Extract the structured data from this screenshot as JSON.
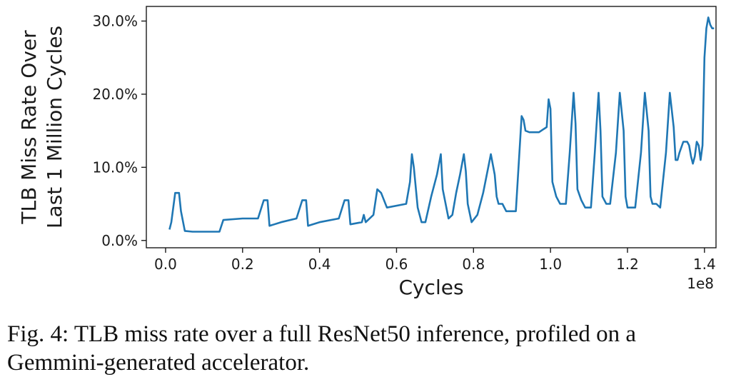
{
  "chart_data": {
    "type": "line",
    "xlabel": "Cycles",
    "x_offset_label": "1e8",
    "ylabel_lines": [
      "TLB Miss Rate Over",
      "Last 1 Million Cycles"
    ],
    "xlim": [
      -0.05,
      1.43
    ],
    "ylim": [
      -1.0,
      32.0
    ],
    "x_ticks": [
      0.0,
      0.2,
      0.4,
      0.6,
      0.8,
      1.0,
      1.2,
      1.4
    ],
    "x_tick_labels": [
      "0.0",
      "0.2",
      "0.4",
      "0.6",
      "0.8",
      "1.0",
      "1.2",
      "1.4"
    ],
    "y_ticks": [
      0,
      10,
      20,
      30
    ],
    "y_tick_labels": [
      "0.0%",
      "10.0%",
      "20.0%",
      "30.0%"
    ],
    "color": "#1f77b4",
    "series": [
      {
        "x": [
          0.01,
          0.015,
          0.025,
          0.035,
          0.04,
          0.05,
          0.07,
          0.1,
          0.14,
          0.15,
          0.2,
          0.24,
          0.255,
          0.265,
          0.27,
          0.3,
          0.34,
          0.355,
          0.365,
          0.37,
          0.4,
          0.45,
          0.465,
          0.475,
          0.48,
          0.51,
          0.515,
          0.52,
          0.54,
          0.55,
          0.56,
          0.575,
          0.625,
          0.635,
          0.64,
          0.645,
          0.655,
          0.665,
          0.675,
          0.69,
          0.705,
          0.715,
          0.72,
          0.735,
          0.745,
          0.755,
          0.765,
          0.775,
          0.78,
          0.785,
          0.795,
          0.81,
          0.825,
          0.845,
          0.855,
          0.86,
          0.865,
          0.875,
          0.885,
          0.91,
          0.925,
          0.93,
          0.935,
          0.945,
          0.955,
          0.97,
          0.99,
          0.995,
          1.0,
          1.005,
          1.015,
          1.025,
          1.04,
          1.05,
          1.06,
          1.065,
          1.07,
          1.08,
          1.09,
          1.105,
          1.115,
          1.125,
          1.13,
          1.135,
          1.145,
          1.155,
          1.17,
          1.18,
          1.19,
          1.195,
          1.2,
          1.21,
          1.22,
          1.235,
          1.245,
          1.255,
          1.26,
          1.265,
          1.275,
          1.285,
          1.3,
          1.31,
          1.32,
          1.325,
          1.33,
          1.335,
          1.345,
          1.355,
          1.36,
          1.365,
          1.37,
          1.375,
          1.38,
          1.385,
          1.39,
          1.395,
          1.4,
          1.405,
          1.41,
          1.415,
          1.42,
          1.425
        ],
        "y": [
          1.5,
          2.5,
          6.5,
          6.5,
          4.0,
          1.3,
          1.2,
          1.2,
          1.2,
          2.8,
          3.0,
          3.0,
          5.5,
          5.5,
          2.0,
          2.5,
          3.0,
          5.5,
          5.5,
          2.0,
          2.5,
          3.0,
          5.5,
          5.5,
          2.2,
          2.5,
          3.5,
          2.5,
          3.5,
          7.0,
          6.5,
          4.5,
          5.0,
          8.0,
          11.8,
          10.0,
          4.5,
          2.5,
          2.5,
          6.0,
          9.0,
          11.8,
          7.0,
          3.0,
          3.5,
          6.5,
          9.0,
          11.8,
          9.5,
          5.0,
          2.5,
          3.5,
          6.5,
          11.8,
          9.0,
          6.0,
          5.0,
          5.0,
          4.0,
          4.0,
          17.0,
          16.5,
          15.0,
          14.8,
          14.8,
          14.8,
          15.5,
          19.3,
          18.0,
          8.0,
          6.0,
          5.0,
          5.0,
          12.0,
          20.2,
          16.0,
          7.0,
          5.5,
          4.5,
          4.5,
          12.0,
          20.2,
          15.0,
          6.0,
          5.0,
          5.0,
          12.0,
          20.2,
          15.0,
          6.0,
          4.5,
          4.5,
          4.5,
          12.0,
          20.2,
          15.0,
          6.0,
          5.0,
          5.0,
          4.5,
          12.0,
          20.2,
          15.5,
          11.0,
          11.0,
          12.0,
          13.5,
          13.5,
          13.0,
          11.5,
          10.5,
          11.5,
          13.5,
          13.0,
          11.0,
          13.0,
          25.0,
          29.0,
          30.5,
          29.5,
          29.0,
          29.0
        ]
      }
    ]
  },
  "caption": "Fig. 4: TLB miss rate over a full ResNet50 inference, profiled on a Gemmini-generated accelerator."
}
